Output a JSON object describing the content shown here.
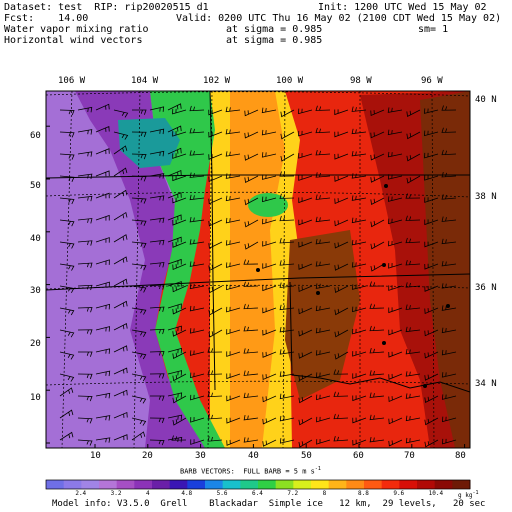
{
  "header": {
    "dataset": "Dataset: test  RIP: rip20020515 d1",
    "init": "Init: 1200 UTC Wed 15 May 02",
    "fcst": "Fcst:    14.00",
    "valid": "Valid: 0200 UTC Thu 16 May 02 (2100 CDT Wed 15 May 02)",
    "field1": "Water vapor mixing ratio",
    "field1_level": "at sigma = 0.985",
    "field1_sm": "sm= 1",
    "field2": "Horizontal wind vectors",
    "field2_level": "at sigma = 0.985"
  },
  "map": {
    "lon_labels": [
      "106 W",
      "104 W",
      "102 W",
      "100 W",
      "98 W",
      "96 W"
    ],
    "lat_labels": [
      "40 N",
      "38 N",
      "36 N",
      "34 N"
    ],
    "y_ticks": [
      "10",
      "20",
      "30",
      "40",
      "50",
      "60"
    ],
    "x_ticks": [
      "10",
      "20",
      "30",
      "40",
      "50",
      "60",
      "70",
      "80"
    ],
    "barb_note": "BARB VECTORS:  FULL BARB = 5 m s",
    "barb_sup": "-1"
  },
  "colorbar": {
    "colors": [
      "#6f6fe6",
      "#8c7ae8",
      "#a184e6",
      "#b475d8",
      "#a64fc4",
      "#8c33b8",
      "#6a1fa8",
      "#3a16b4",
      "#1a3fdc",
      "#1b86e8",
      "#18c0cc",
      "#1fc98a",
      "#2fd045",
      "#8ce022",
      "#d8ef1c",
      "#ffe51a",
      "#ffb419",
      "#ff8a16",
      "#ff5a12",
      "#f42b0c",
      "#d80f07",
      "#b10a06",
      "#8a0a05",
      "#6e1a06"
    ],
    "labels": [
      "2.4",
      "3.2",
      "4",
      "4.8",
      "5.6",
      "6.4",
      "7.2",
      "8",
      "8.8",
      "9.6",
      "10.4"
    ],
    "unit": "g kg",
    "unit_sup": "-1"
  },
  "footer": {
    "model_info": "Model info: V3.5.0  Grell    Blackadar  Simple ice   12 km,  29 levels,   20 sec"
  }
}
